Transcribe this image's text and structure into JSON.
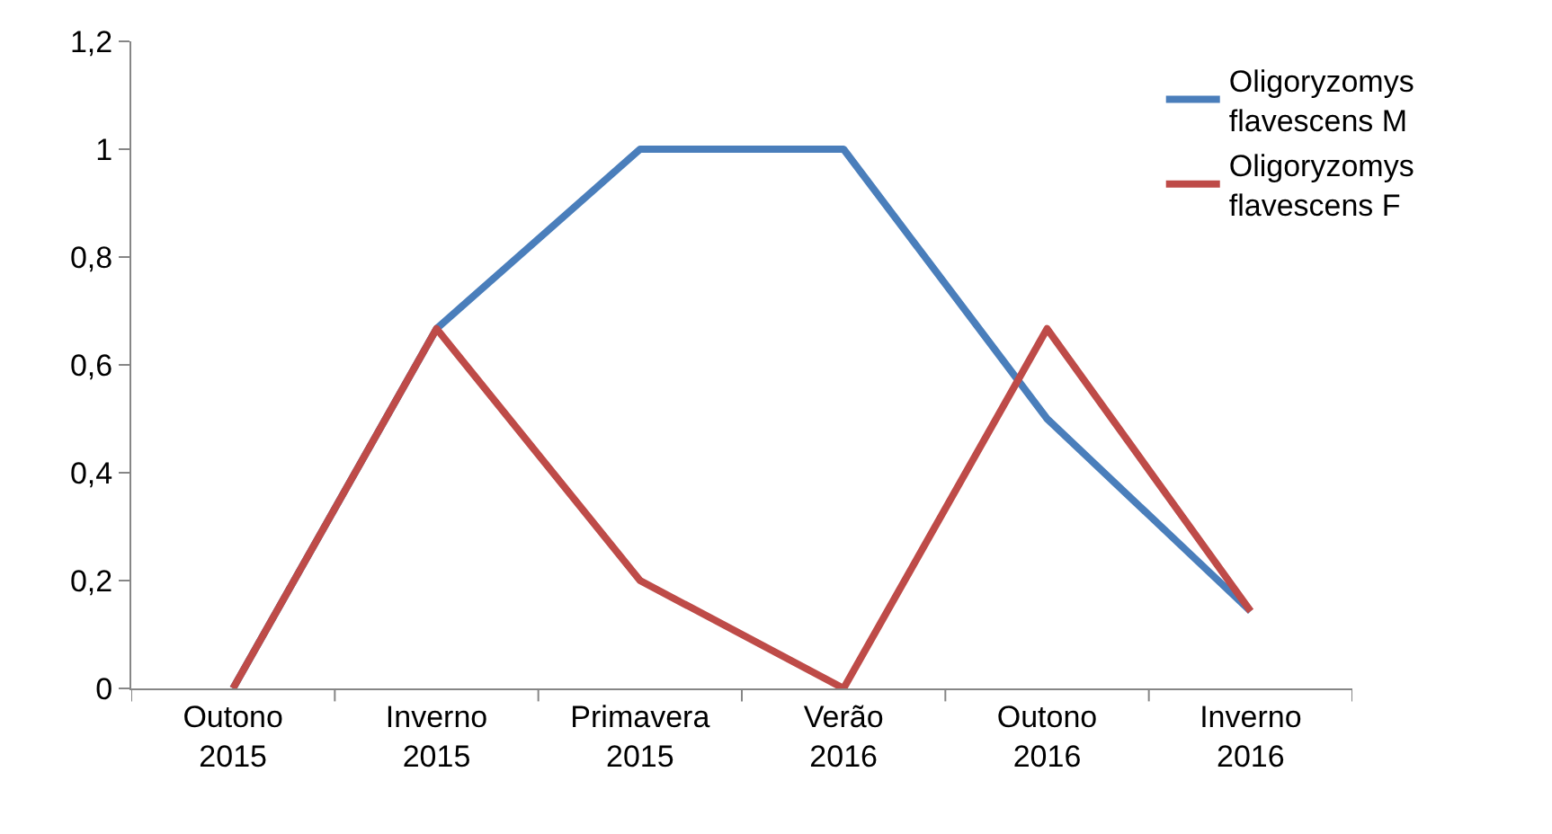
{
  "chart_data": {
    "type": "line",
    "categories": [
      "Outono 2015",
      "Inverno 2015",
      "Primavera 2015",
      "Verão 2016",
      "Outono 2016",
      "Inverno 2016"
    ],
    "series": [
      {
        "name": "Oligoryzomys flavescens M",
        "color": "#4a7ebb",
        "values": [
          0,
          0.667,
          1,
          1,
          0.5,
          0.143
        ]
      },
      {
        "name": "Oligoryzomys flavescens F",
        "color": "#be4b48",
        "values": [
          0,
          0.667,
          0.2,
          0,
          0.667,
          0.143
        ]
      }
    ],
    "ylim": [
      0,
      1.2
    ],
    "yticks": [
      0,
      {
        "value": 0.2,
        "label": "0,2"
      },
      {
        "value": 0.4,
        "label": "0,4"
      },
      {
        "value": 0.6,
        "label": "0,6"
      },
      {
        "value": 0.8,
        "label": "0,8"
      },
      1,
      {
        "value": 1.2,
        "label": "1,2"
      }
    ],
    "grid": false,
    "legend": "top right",
    "marker": "none",
    "line_style": "solid"
  }
}
